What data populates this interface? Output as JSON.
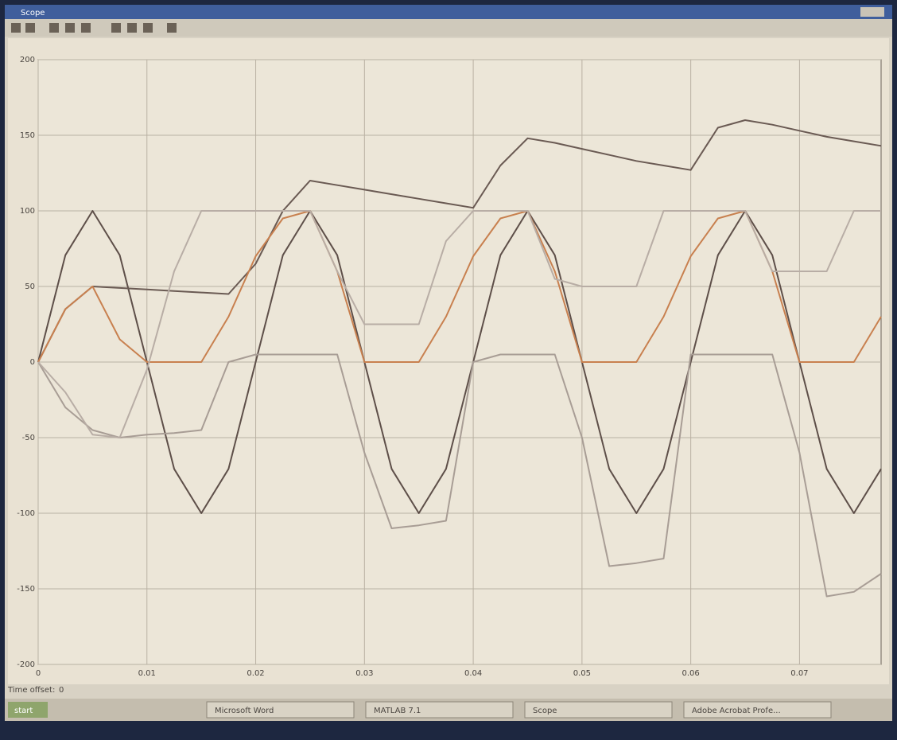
{
  "window": {
    "title": "Scope"
  },
  "chart_data": {
    "type": "line",
    "x": [
      0,
      0.0025,
      0.005,
      0.0075,
      0.01,
      0.0125,
      0.015,
      0.0175,
      0.02,
      0.0225,
      0.025,
      0.0275,
      0.03,
      0.0325,
      0.035,
      0.0375,
      0.04,
      0.0425,
      0.045,
      0.0475,
      0.05,
      0.0525,
      0.055,
      0.0575,
      0.06,
      0.0625,
      0.065,
      0.0675,
      0.07,
      0.0725,
      0.075,
      0.0775
    ],
    "series": [
      {
        "color": "#5e4f49",
        "values": [
          0,
          70.7,
          100,
          70.7,
          0,
          -70.7,
          -100,
          -70.7,
          0,
          70.7,
          100,
          70.7,
          0,
          -70.7,
          -100,
          -70.7,
          0,
          70.7,
          100,
          70.7,
          0,
          -70.7,
          -100,
          -70.7,
          0,
          70.7,
          100,
          70.7,
          0,
          -70.7,
          -100,
          -70.7
        ]
      },
      {
        "color": "#6a5a53",
        "values": [
          0,
          35,
          50,
          49,
          48,
          47,
          46,
          45,
          65,
          100,
          120,
          117,
          114,
          111,
          108,
          105,
          102,
          130,
          148,
          145,
          141,
          137,
          133,
          130,
          127,
          155,
          160,
          157,
          153,
          149,
          146,
          143
        ]
      },
      {
        "color": "#c8804f",
        "values": [
          0,
          35,
          50,
          15,
          0,
          0,
          0,
          30,
          70,
          95,
          100,
          60,
          0,
          0,
          0,
          30,
          70,
          95,
          100,
          60,
          0,
          0,
          0,
          30,
          70,
          95,
          100,
          60,
          0,
          0,
          0,
          30
        ]
      },
      {
        "color": "#a89d95",
        "values": [
          0,
          -30,
          -45,
          -50,
          -48,
          -47,
          -45,
          0,
          5,
          5,
          5,
          5,
          -60,
          -110,
          -108,
          -105,
          0,
          5,
          5,
          5,
          -50,
          -135,
          -133,
          -130,
          5,
          5,
          5,
          5,
          -60,
          -155,
          -152,
          -140
        ]
      },
      {
        "color": "#b8ada5",
        "values": [
          0,
          -20,
          -48,
          -50,
          -5,
          60,
          100,
          100,
          100,
          100,
          100,
          60,
          25,
          25,
          25,
          80,
          100,
          100,
          100,
          55,
          50,
          50,
          50,
          100,
          100,
          100,
          100,
          60,
          60,
          60,
          100,
          100
        ]
      }
    ],
    "xlim": [
      0,
      0.0775
    ],
    "xticks": [
      0,
      0.01,
      0.02,
      0.03,
      0.04,
      0.05,
      0.06,
      0.07
    ],
    "ylim": [
      -200,
      200
    ],
    "yticks": [
      -200,
      -150,
      -100,
      -50,
      0,
      50,
      100,
      150,
      200
    ],
    "grid": true
  },
  "status": {
    "label": "Time offset:",
    "value": 0
  },
  "taskbar": {
    "start": "start",
    "items": [
      "Microsoft Word",
      "MATLAB 7.1",
      "Scope",
      "Adobe Acrobat Profe..."
    ]
  }
}
